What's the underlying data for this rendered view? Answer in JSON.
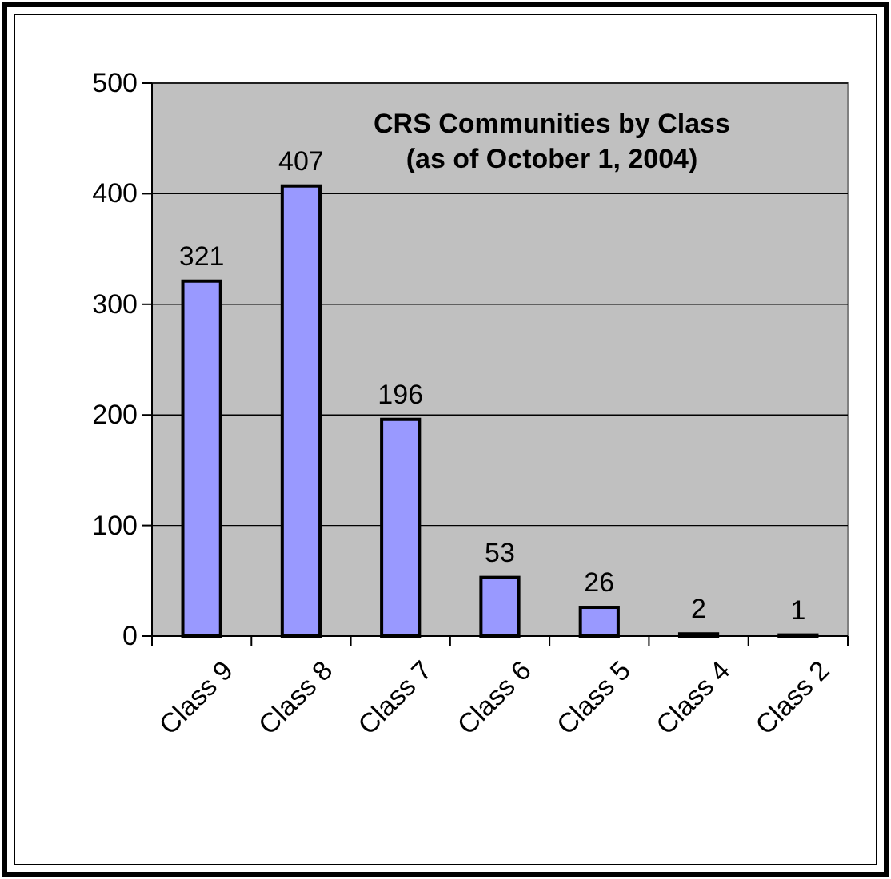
{
  "chart_data": {
    "type": "bar",
    "title": "CRS Communities by Class\n(as of October 1, 2004)",
    "categories": [
      "Class 9",
      "Class 8",
      "Class 7",
      "Class 6",
      "Class 5",
      "Class 4",
      "Class 2"
    ],
    "values": [
      321,
      407,
      196,
      53,
      26,
      2,
      1
    ],
    "data_labels": true,
    "color": "#9999ff",
    "ylim": [
      0,
      500
    ],
    "yticks": [
      0,
      100,
      200,
      300,
      400,
      500
    ],
    "grid": "y"
  }
}
